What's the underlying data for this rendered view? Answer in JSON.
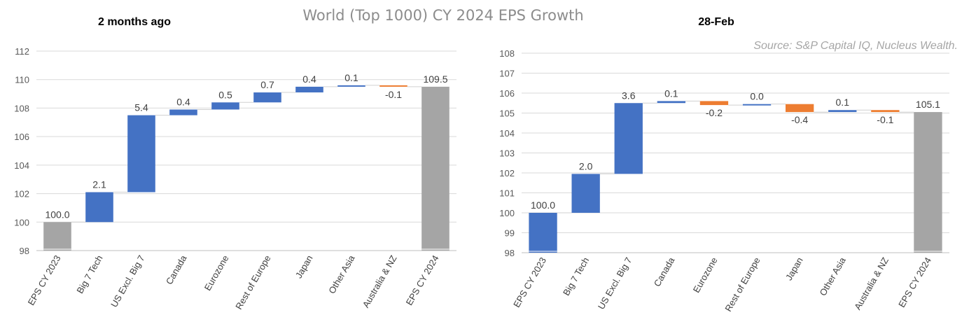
{
  "chart_data": {
    "type": "waterfall",
    "title": "World (Top 1000) CY 2024 EPS Growth",
    "source": "Source: S&P Capital IQ, Nucleus Wealth.",
    "colors": {
      "increase": "#4472c4",
      "decrease": "#ed7d31",
      "total": "#a5a5a5"
    },
    "panels": [
      {
        "subtitle": "2 months ago",
        "ylim": [
          98,
          112
        ],
        "yticks": [
          98,
          100,
          102,
          104,
          106,
          108,
          110,
          112
        ],
        "categories": [
          "EPS CY 2023",
          "Big 7 Tech",
          "US Excl. Big 7",
          "Canada",
          "Eurozone",
          "Rest of Europe",
          "Japan",
          "Other Asia",
          "Australia & NZ",
          "EPS CY 2024"
        ],
        "values": [
          100.0,
          2.1,
          5.4,
          0.4,
          0.5,
          0.7,
          0.4,
          0.1,
          -0.1,
          109.5
        ],
        "labels": [
          "100.0",
          "2.1",
          "5.4",
          "0.4",
          "0.5",
          "0.7",
          "0.4",
          "0.1",
          "-0.1",
          "109.5"
        ],
        "kinds": [
          "total",
          "delta",
          "delta",
          "delta",
          "delta",
          "delta",
          "delta",
          "delta",
          "delta",
          "total"
        ]
      },
      {
        "subtitle": "28-Feb",
        "ylim": [
          98,
          108
        ],
        "yticks": [
          98,
          99,
          100,
          101,
          102,
          103,
          104,
          105,
          106,
          107,
          108
        ],
        "categories": [
          "EPS CY 2023",
          "Big 7 Tech",
          "US Excl. Big 7",
          "Canada",
          "Eurozone",
          "Rest of Europe",
          "Japan",
          "Other Asia",
          "Australia & NZ",
          "EPS CY 2024"
        ],
        "values": [
          100.0,
          1.95,
          3.55,
          0.1,
          -0.2,
          0.05,
          -0.4,
          0.1,
          -0.1,
          105.05
        ],
        "labels": [
          "100.0",
          "2.0",
          "3.6",
          "0.1",
          "-0.2",
          "0.0",
          "-0.4",
          "0.1",
          "-0.1",
          "105.1"
        ],
        "kinds": [
          "first",
          "delta",
          "delta",
          "delta",
          "delta",
          "delta",
          "delta",
          "delta",
          "delta",
          "total"
        ]
      }
    ]
  }
}
